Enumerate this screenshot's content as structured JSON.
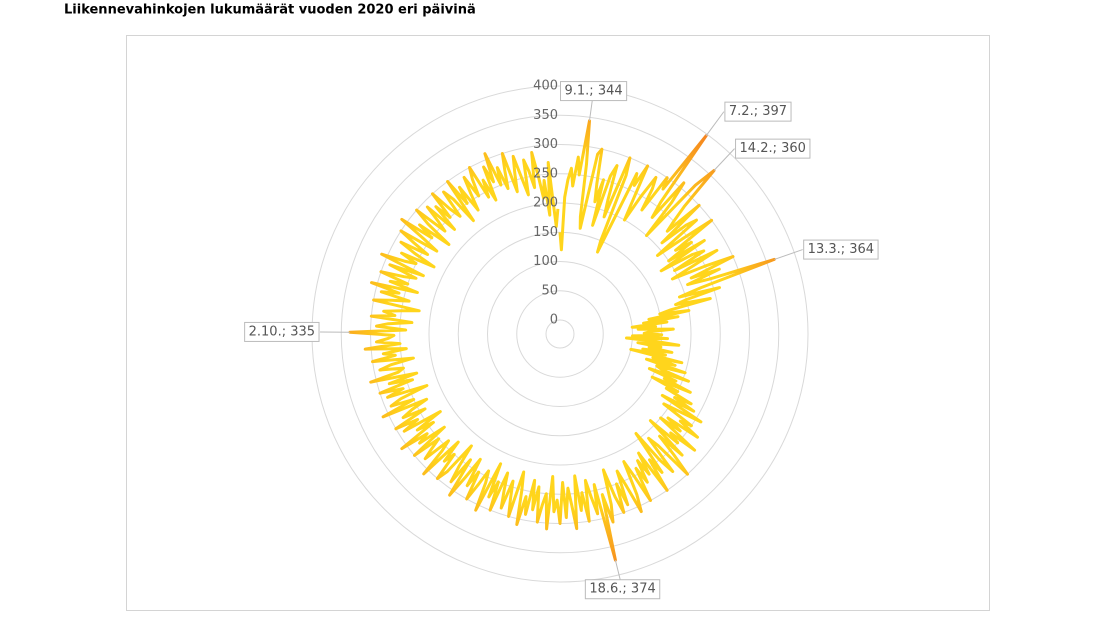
{
  "chart_data": {
    "type": "radar",
    "title": "Liikennevahinkojen lukumäärät vuoden 2020 eri päivinä",
    "values": [
      150,
      120,
      210,
      240,
      260,
      230,
      280,
      250,
      344,
      270,
      180,
      160,
      290,
      300,
      240,
      210,
      250,
      170,
      260,
      280,
      220,
      190,
      300,
      270,
      150,
      130,
      280,
      260,
      300,
      240,
      200,
      250,
      290,
      270,
      230,
      300,
      280,
      397,
      260,
      230,
      310,
      270,
      200,
      320,
      360,
      280,
      250,
      230,
      300,
      210,
      260,
      280,
      190,
      240,
      300,
      220,
      250,
      200,
      270,
      180,
      240,
      260,
      200,
      280,
      230,
      190,
      250,
      300,
      220,
      270,
      210,
      250,
      364,
      230,
      190,
      260,
      200,
      180,
      240,
      170,
      150,
      200,
      130,
      180,
      120,
      160,
      100,
      140,
      110,
      170,
      130,
      120,
      150,
      100,
      160,
      90,
      140,
      180,
      110,
      150,
      130,
      170,
      120,
      160,
      100,
      190,
      140,
      180,
      130,
      200,
      150,
      160,
      210,
      140,
      190,
      170,
      220,
      150,
      200,
      180,
      230,
      200,
      240,
      180,
      260,
      220,
      190,
      250,
      230,
      270,
      210,
      240,
      200,
      280,
      230,
      250,
      190,
      270,
      220,
      260,
      300,
      230,
      210,
      280,
      250,
      190,
      270,
      240,
      300,
      220,
      260,
      230,
      270,
      240,
      300,
      250,
      220,
      280,
      310,
      260,
      230,
      290,
      250,
      300,
      270,
      220,
      280,
      310,
      260,
      374,
      240,
      290,
      260,
      230,
      300,
      250,
      280,
      220,
      310,
      270,
      240,
      290,
      230,
      300,
      260,
      280,
      220,
      310,
      250,
      270,
      300,
      240,
      280,
      230,
      290,
      260,
      310,
      250,
      220,
      300,
      270,
      240,
      290,
      260,
      230,
      300,
      250,
      280,
      220,
      310,
      260,
      240,
      270,
      300,
      250,
      280,
      230,
      270,
      310,
      240,
      290,
      260,
      220,
      280,
      300,
      250,
      270,
      230,
      310,
      260,
      240,
      290,
      270,
      250,
      300,
      230,
      280,
      260,
      310,
      240,
      270,
      220,
      290,
      260,
      300,
      240,
      280,
      260,
      230,
      310,
      250,
      290,
      270,
      220,
      290,
      260,
      300,
      240,
      280,
      230,
      310,
      260,
      250,
      290,
      270,
      230,
      300,
      260,
      280,
      240,
      310,
      250,
      290,
      270,
      260,
      335,
      240,
      290,
      270,
      230,
      300,
      260,
      280,
      250,
      220,
      300,
      270,
      240,
      290,
      260,
      310,
      230,
      280,
      250,
      300,
      260,
      240,
      290,
      230,
      310,
      270,
      250,
      280,
      220,
      260,
      290,
      240,
      270,
      300,
      230,
      260,
      310,
      250,
      280,
      220,
      270,
      300,
      240,
      260,
      290,
      230,
      280,
      250,
      300,
      260,
      240,
      290,
      270,
      220,
      300,
      250,
      280,
      230,
      260,
      290,
      250,
      280,
      300,
      240,
      270,
      230,
      290,
      260,
      310,
      250,
      280,
      240,
      270,
      300,
      230,
      260,
      290,
      250,
      220,
      280,
      260,
      230,
      290,
      250,
      210,
      240,
      180,
      270,
      200,
      160,
      190
    ],
    "ylim": [
      0,
      400
    ],
    "yticks": [
      0,
      50,
      100,
      150,
      200,
      250,
      300,
      350,
      400
    ],
    "grid": true,
    "color": "#ffd51c",
    "peak_color": "#f5821f",
    "annotations": [
      {
        "text": "9.1.; 344",
        "index": 8
      },
      {
        "text": "7.2.; 397",
        "index": 37
      },
      {
        "text": "14.2.; 360",
        "index": 44
      },
      {
        "text": "13.3.; 364",
        "index": 72
      },
      {
        "text": "18.6.; 374",
        "index": 169
      },
      {
        "text": "2.10.; 335",
        "index": 275
      }
    ]
  }
}
